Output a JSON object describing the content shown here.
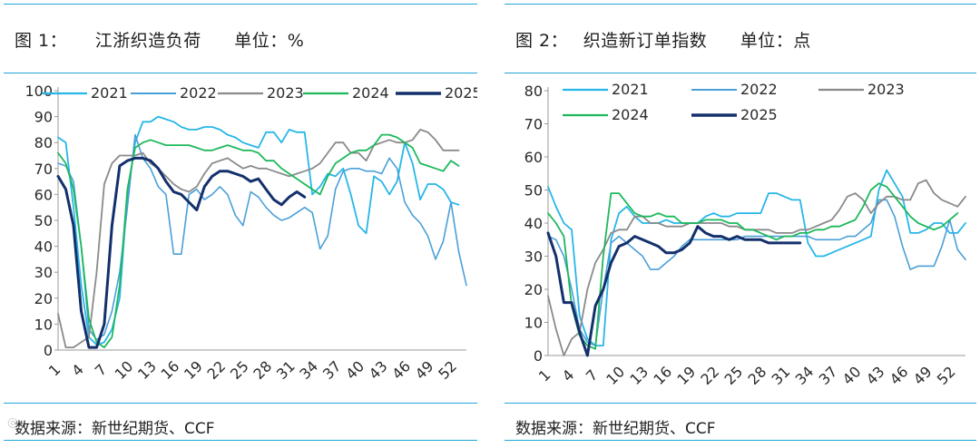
{
  "colors": {
    "divider": "#1ea6d6"
  },
  "panels": [
    {
      "figure_label": "图 1：",
      "title": "江浙织造负荷",
      "unit": "单位：%",
      "source": "数据来源：新世纪期货、CCF",
      "chart_data": {
        "type": "line",
        "title": "江浙织造负荷",
        "unit": "%",
        "ylim": [
          0,
          100
        ],
        "yticks": [
          0,
          10,
          20,
          30,
          40,
          50,
          60,
          70,
          80,
          90,
          100
        ],
        "xticks": [
          1,
          4,
          7,
          10,
          13,
          16,
          19,
          22,
          25,
          28,
          31,
          34,
          37,
          40,
          43,
          46,
          49,
          52
        ],
        "xlim": [
          1,
          54
        ],
        "series": [
          {
            "name": "2021",
            "color": "#27b6e8",
            "width": 1.8,
            "values": [
              82,
              80,
              55,
              25,
              5,
              2,
              3,
              8,
              20,
              60,
              80,
              88,
              88,
              90,
              89,
              88,
              86,
              85,
              85,
              86,
              86,
              85,
              83,
              82,
              80,
              79,
              78,
              84,
              84,
              80,
              85,
              84,
              84,
              60,
              63,
              68,
              67,
              70,
              60,
              48,
              45,
              67,
              65,
              60,
              65,
              80,
              72,
              58,
              64,
              64,
              62,
              57,
              56
            ]
          },
          {
            "name": "2022",
            "color": "#4a9fd8",
            "width": 1.6,
            "values": [
              72,
              71,
              65,
              40,
              8,
              4,
              6,
              15,
              30,
              55,
              83,
              74,
              70,
              63,
              60,
              37,
              37,
              60,
              62,
              58,
              60,
              63,
              60,
              52,
              48,
              61,
              59,
              55,
              52,
              50,
              51,
              53,
              55,
              53,
              39,
              44,
              62,
              69,
              70,
              70,
              69,
              69,
              68,
              74,
              70,
              57,
              52,
              49,
              44,
              35,
              42,
              57,
              38,
              25
            ]
          },
          {
            "name": "2023",
            "color": "#8a8a8a",
            "width": 1.8,
            "values": [
              14,
              1,
              1,
              3,
              5,
              30,
              64,
              72,
              75,
              75,
              75,
              76,
              72,
              70,
              67,
              64,
              62,
              61,
              63,
              68,
              72,
              73,
              74,
              72,
              70,
              71,
              70,
              70,
              69,
              68,
              67,
              68,
              69,
              70,
              72,
              76,
              80,
              80,
              76,
              76,
              73,
              79,
              80,
              81,
              80,
              80,
              81,
              85,
              84,
              81,
              77,
              77,
              77
            ]
          },
          {
            "name": "2024",
            "color": "#1db85c",
            "width": 1.8,
            "values": [
              76,
              72,
              62,
              40,
              12,
              3,
              1,
              5,
              25,
              62,
              78,
              80,
              81,
              80,
              79,
              79,
              79,
              79,
              78,
              77,
              77,
              78,
              79,
              78,
              77,
              77,
              76,
              73,
              73,
              70,
              68,
              66,
              64,
              62,
              60,
              67,
              72,
              74,
              76,
              77,
              77,
              79,
              83,
              83,
              82,
              80,
              78,
              72,
              71,
              70,
              69,
              73,
              71
            ]
          },
          {
            "name": "2025",
            "color": "#14306c",
            "width": 3,
            "values": [
              67,
              62,
              48,
              15,
              1,
              1,
              10,
              48,
              71,
              73,
              74,
              74,
              73,
              70,
              65,
              61,
              60,
              57,
              54,
              63,
              67,
              69,
              69,
              68,
              67,
              65,
              66,
              62,
              58,
              56,
              59,
              61,
              59
            ]
          }
        ]
      }
    },
    {
      "figure_label": "图 2：",
      "title": "织造新订单指数",
      "unit": "单位：点",
      "source": "数据来源：新世纪期货、CCF",
      "chart_data": {
        "type": "line",
        "title": "织造新订单指数",
        "unit": "点",
        "ylim": [
          0,
          80
        ],
        "yticks": [
          0,
          10,
          20,
          30,
          40,
          50,
          60,
          70,
          80
        ],
        "xticks": [
          1,
          4,
          7,
          10,
          13,
          16,
          19,
          22,
          25,
          28,
          31,
          34,
          37,
          40,
          43,
          46,
          49,
          52
        ],
        "xlim": [
          1,
          54
        ],
        "series": [
          {
            "name": "2021",
            "color": "#27b6e8",
            "width": 1.8,
            "values": [
              51,
              45,
              40,
              38,
              12,
              5,
              3,
              3,
              35,
              43,
              45,
              42,
              40,
              40,
              40,
              41,
              40,
              40,
              40,
              40,
              42,
              43,
              42,
              42,
              43,
              43,
              43,
              43,
              49,
              49,
              48,
              47,
              47,
              34,
              30,
              30,
              31,
              32,
              33,
              34,
              35,
              36,
              50,
              56,
              52,
              48,
              37,
              37,
              38,
              40,
              40,
              37,
              37,
              40
            ]
          },
          {
            "name": "2022",
            "color": "#4a9fd8",
            "width": 1.6,
            "values": [
              36,
              35,
              30,
              20,
              8,
              4,
              3,
              20,
              34,
              36,
              34,
              32,
              30,
              26,
              26,
              28,
              30,
              33,
              35,
              35,
              35,
              35,
              35,
              35,
              35,
              36,
              36,
              36,
              36,
              36,
              36,
              36,
              36,
              36,
              35,
              35,
              35,
              35,
              36,
              36,
              38,
              40,
              47,
              47,
              42,
              33,
              26,
              27,
              27,
              27,
              33,
              41,
              32,
              29
            ]
          },
          {
            "name": "2023",
            "color": "#8a8a8a",
            "width": 1.8,
            "values": [
              18,
              8,
              0,
              5,
              7,
              20,
              28,
              32,
              37,
              38,
              38,
              42,
              42,
              40,
              40,
              39,
              39,
              39,
              40,
              40,
              40,
              40,
              40,
              39,
              39,
              38,
              38,
              38,
              38,
              37,
              37,
              37,
              38,
              38,
              39,
              40,
              41,
              44,
              48,
              49,
              47,
              43,
              46,
              48,
              48,
              47,
              47,
              52,
              53,
              49,
              47,
              46,
              45,
              48
            ]
          },
          {
            "name": "2024",
            "color": "#1db85c",
            "width": 1.8,
            "values": [
              43,
              40,
              36,
              15,
              6,
              3,
              2,
              30,
              49,
              49,
              46,
              43,
              42,
              42,
              43,
              42,
              42,
              40,
              40,
              40,
              41,
              41,
              41,
              40,
              40,
              38,
              38,
              37,
              36,
              35,
              36,
              36,
              37,
              37,
              38,
              38,
              39,
              39,
              40,
              41,
              45,
              50,
              52,
              51,
              48,
              45,
              42,
              40,
              39,
              38,
              39,
              41,
              43
            ]
          },
          {
            "name": "2025",
            "color": "#14306c",
            "width": 3,
            "values": [
              37,
              30,
              16,
              16,
              7,
              0,
              15,
              20,
              28,
              33,
              34,
              36,
              35,
              34,
              33,
              31,
              31,
              32,
              34,
              39,
              37,
              36,
              36,
              35,
              36,
              35,
              35,
              35,
              34,
              34,
              34,
              34,
              34
            ]
          }
        ]
      }
    }
  ]
}
